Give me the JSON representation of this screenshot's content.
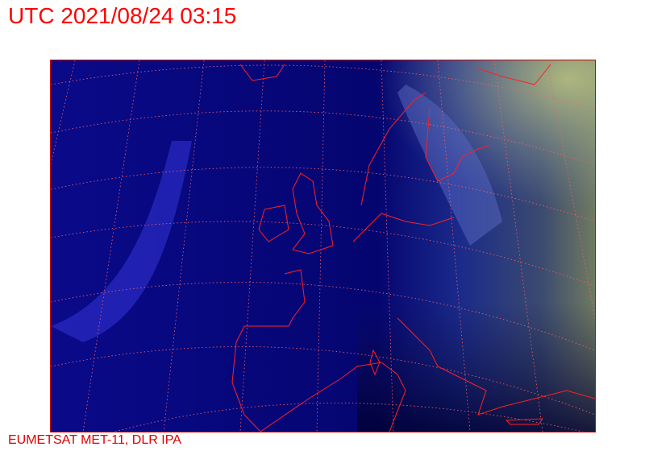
{
  "title": "UTC 2021/08/24 03:15",
  "credit": "EUMETSAT MET-11, DLR IPA",
  "colors": {
    "text": "#ff0000",
    "coastline": "#ff2020",
    "graticule": "#ff6060",
    "ocean_night": "#06066e"
  }
}
